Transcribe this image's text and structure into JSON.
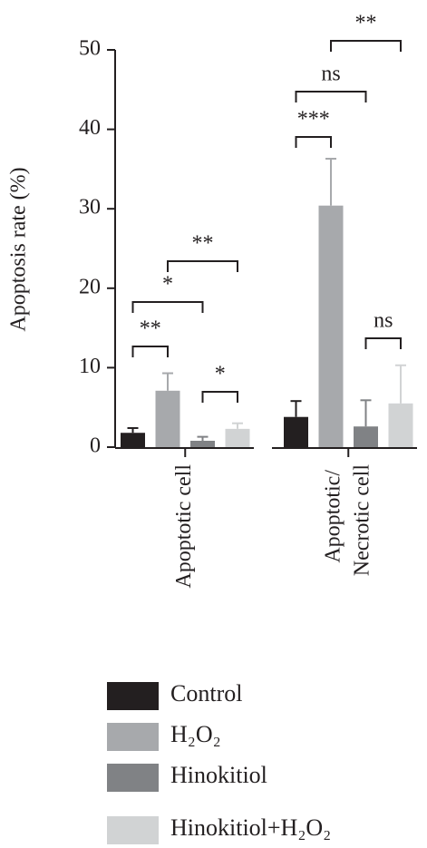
{
  "chart_data": {
    "type": "bar",
    "y_label": "Apoptosis rate (%)",
    "categories": [
      "Apoptotic cell",
      "Apoptotic/ Necrotic cell"
    ],
    "series": [
      {
        "name": "Control",
        "color": "#231f20",
        "values": [
          1.8,
          3.8
        ],
        "errors": [
          0.6,
          2.0
        ]
      },
      {
        "name": "H₂O₂",
        "color": "#a7a9ac",
        "values": [
          7.1,
          30.4
        ],
        "errors": [
          2.2,
          5.9
        ]
      },
      {
        "name": "Hinokitiol",
        "color": "#808285",
        "values": [
          0.8,
          2.6
        ],
        "errors": [
          0.5,
          3.3
        ]
      },
      {
        "name": "Hinokitiol+H₂O₂",
        "color": "#d1d3d4",
        "values": [
          2.3,
          5.5
        ],
        "errors": [
          0.7,
          4.8
        ]
      }
    ],
    "ylim": [
      0,
      50
    ],
    "yticks": [
      0,
      10,
      20,
      30,
      40,
      50
    ],
    "annotations": [
      {
        "text": "**"
      },
      {
        "text": "*"
      },
      {
        "text": "*"
      },
      {
        "text": "**"
      },
      {
        "text": "***"
      },
      {
        "text": "ns"
      },
      {
        "text": "**"
      },
      {
        "text": "ns"
      }
    ]
  }
}
